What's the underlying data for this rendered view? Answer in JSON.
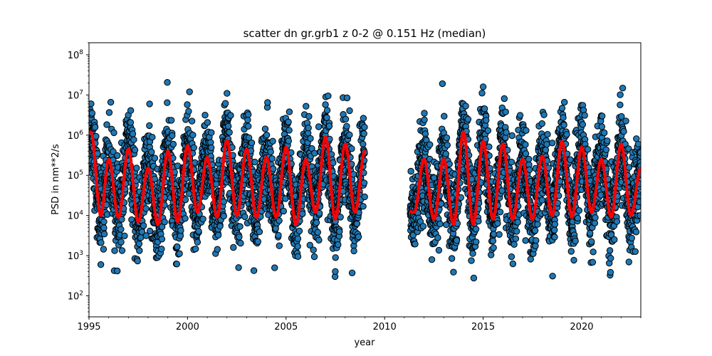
{
  "chart_data": {
    "type": "scatter",
    "title": "scatter dn gr.grb1 z 0-2 @ 0.151 Hz (median)",
    "xlabel": "year",
    "ylabel": "PSD in nm**2/s",
    "xlim": [
      1995,
      2023
    ],
    "ylim": [
      30,
      200000000
    ],
    "yscale": "log",
    "grid": false,
    "x_ticks": [
      {
        "value": 1995,
        "label": "1995"
      },
      {
        "value": 2000,
        "label": "2000"
      },
      {
        "value": 2005,
        "label": "2005"
      },
      {
        "value": 2010,
        "label": "2010"
      },
      {
        "value": 2015,
        "label": "2015"
      },
      {
        "value": 2020,
        "label": "2020"
      }
    ],
    "y_ticks": [
      {
        "value": 100,
        "base": "10",
        "exp": "2"
      },
      {
        "value": 1000,
        "base": "10",
        "exp": "3"
      },
      {
        "value": 10000,
        "base": "10",
        "exp": "4"
      },
      {
        "value": 100000,
        "base": "10",
        "exp": "5"
      },
      {
        "value": 1000000,
        "base": "10",
        "exp": "6"
      },
      {
        "value": 10000000,
        "base": "10",
        "exp": "7"
      },
      {
        "value": 100000000,
        "base": "10",
        "exp": "8"
      }
    ],
    "data_gaps": [
      [
        2009.0,
        2011.3
      ]
    ],
    "series": [
      {
        "kind": "scatter",
        "color": "#1f77b4",
        "edge_color": "#000000",
        "seasonal_median_range": [
          10000,
          500000
        ],
        "spread_decades": 1.3,
        "points_per_year": 90,
        "annotated_extremes": [
          {
            "x": 1995.6,
            "y": 600
          },
          {
            "x": 2014.4,
            "y": 750
          },
          {
            "x": 2015.0,
            "y": 16000000
          },
          {
            "x": 2002.0,
            "y": 11000000
          },
          {
            "x": 2000.1,
            "y": 12000000
          }
        ]
      },
      {
        "kind": "line",
        "color": "#ff0000",
        "annual_peaks": [
          {
            "x": 1995.1,
            "y": 1200000
          },
          {
            "x": 1996.0,
            "y": 250000
          },
          {
            "x": 1997.0,
            "y": 450000
          },
          {
            "x": 1998.0,
            "y": 150000
          },
          {
            "x": 1999.0,
            "y": 400000
          },
          {
            "x": 2000.0,
            "y": 550000
          },
          {
            "x": 2001.0,
            "y": 280000
          },
          {
            "x": 2002.0,
            "y": 750000
          },
          {
            "x": 2003.0,
            "y": 450000
          },
          {
            "x": 2004.0,
            "y": 280000
          },
          {
            "x": 2005.0,
            "y": 500000
          },
          {
            "x": 2006.0,
            "y": 250000
          },
          {
            "x": 2007.0,
            "y": 900000
          },
          {
            "x": 2008.0,
            "y": 600000
          },
          {
            "x": 2009.0,
            "y": 400000
          },
          {
            "x": 2012.0,
            "y": 250000
          },
          {
            "x": 2013.0,
            "y": 250000
          },
          {
            "x": 2014.0,
            "y": 1200000
          },
          {
            "x": 2015.0,
            "y": 700000
          },
          {
            "x": 2016.0,
            "y": 600000
          },
          {
            "x": 2017.0,
            "y": 250000
          },
          {
            "x": 2018.0,
            "y": 300000
          },
          {
            "x": 2019.0,
            "y": 700000
          },
          {
            "x": 2020.0,
            "y": 500000
          },
          {
            "x": 2021.0,
            "y": 250000
          },
          {
            "x": 2022.0,
            "y": 600000
          },
          {
            "x": 2023.0,
            "y": 150000
          }
        ],
        "annual_troughs": [
          {
            "x": 1995.6,
            "y": 10000
          },
          {
            "x": 1996.5,
            "y": 9000
          },
          {
            "x": 1997.5,
            "y": 7000
          },
          {
            "x": 1998.5,
            "y": 6000
          },
          {
            "x": 1999.5,
            "y": 7000
          },
          {
            "x": 2000.5,
            "y": 12000
          },
          {
            "x": 2001.5,
            "y": 9000
          },
          {
            "x": 2002.5,
            "y": 10000
          },
          {
            "x": 2003.5,
            "y": 9000
          },
          {
            "x": 2004.5,
            "y": 9000
          },
          {
            "x": 2005.5,
            "y": 6000
          },
          {
            "x": 2006.5,
            "y": 12000
          },
          {
            "x": 2007.5,
            "y": 8000
          },
          {
            "x": 2008.5,
            "y": 12000
          },
          {
            "x": 2011.5,
            "y": 12000
          },
          {
            "x": 2012.5,
            "y": 8000
          },
          {
            "x": 2013.5,
            "y": 6000
          },
          {
            "x": 2014.5,
            "y": 6000
          },
          {
            "x": 2015.5,
            "y": 8000
          },
          {
            "x": 2016.5,
            "y": 8000
          },
          {
            "x": 2017.5,
            "y": 8000
          },
          {
            "x": 2018.5,
            "y": 10000
          },
          {
            "x": 2019.5,
            "y": 9000
          },
          {
            "x": 2020.5,
            "y": 12000
          },
          {
            "x": 2021.5,
            "y": 9000
          },
          {
            "x": 2022.5,
            "y": 10000
          }
        ]
      }
    ]
  }
}
